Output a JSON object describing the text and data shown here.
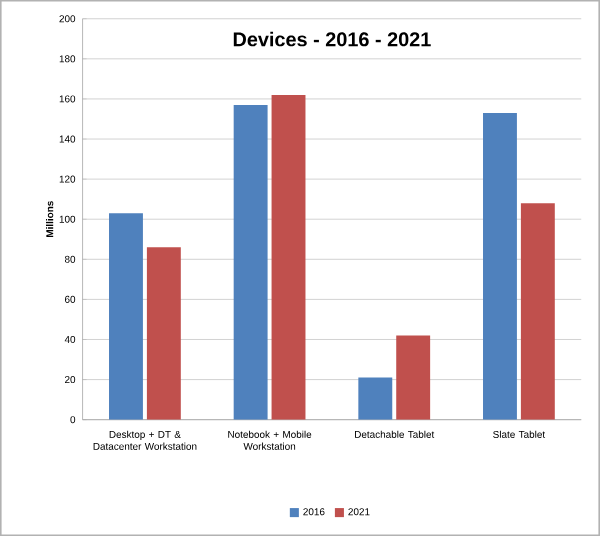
{
  "chart_data": {
    "type": "bar",
    "title": "Devices - 2016 - 2021",
    "ylabel": "Millions",
    "categories": [
      "Desktop + DT & Datacenter Workstation",
      "Notebook + Mobile Workstation",
      "Detachable Tablet",
      "Slate Tablet"
    ],
    "series": [
      {
        "name": "2016",
        "color": "#4f81bd",
        "values": [
          103,
          157,
          21,
          153
        ]
      },
      {
        "name": "2021",
        "color": "#c0504d",
        "values": [
          86,
          162,
          42,
          108
        ]
      }
    ],
    "ylim": [
      0,
      200
    ],
    "yticks": [
      0,
      20,
      40,
      60,
      80,
      100,
      120,
      140,
      160,
      180,
      200
    ],
    "grid": "y",
    "legend": "bottom"
  }
}
